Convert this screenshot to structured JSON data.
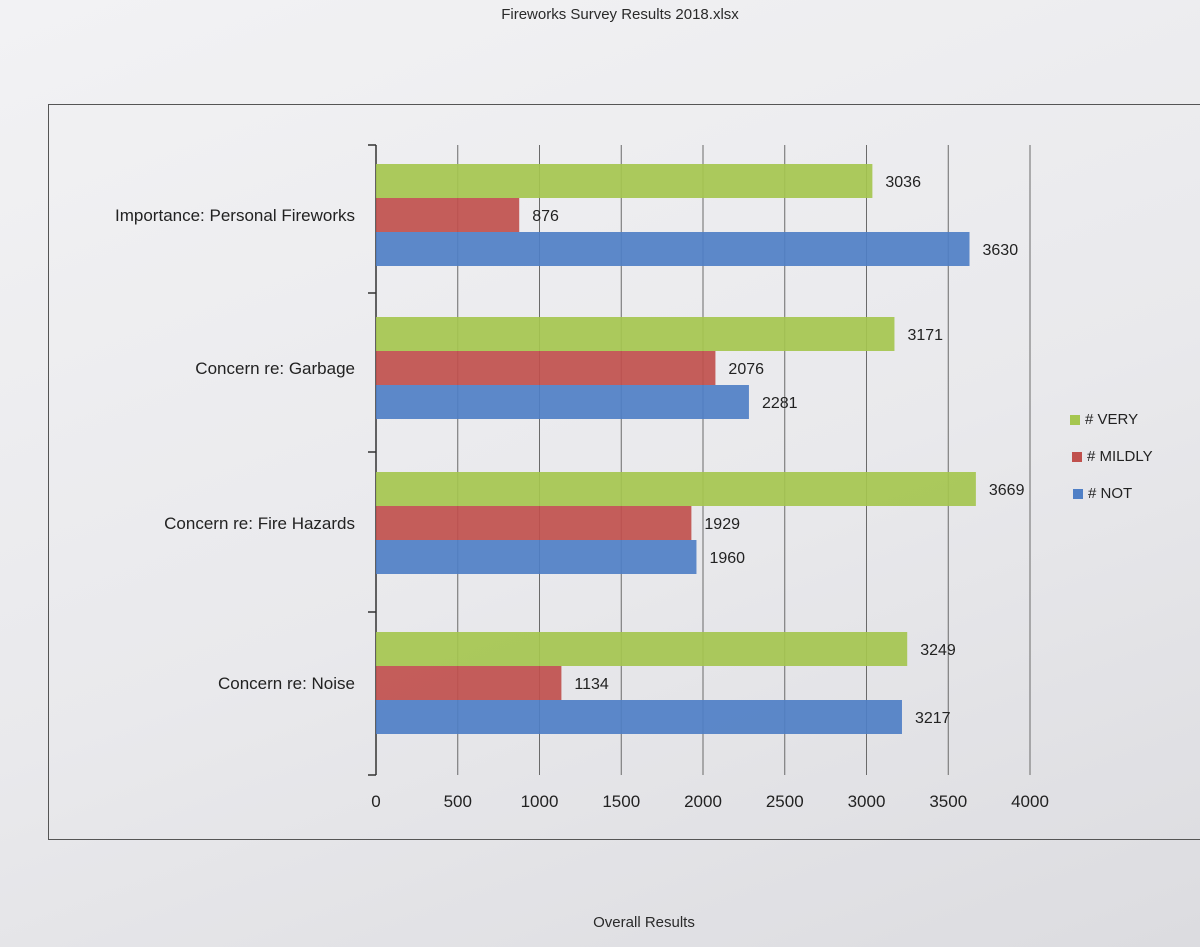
{
  "file_title": "Fireworks Survey Results 2018.xlsx",
  "footer_title": "Overall Results",
  "chart_data": {
    "type": "bar",
    "orientation": "horizontal",
    "title": "Overall Results",
    "categories": [
      "Importance: Personal Fireworks",
      "Concern re: Garbage",
      "Concern re: Fire Hazards",
      "Concern re: Noise"
    ],
    "series": [
      {
        "name": "# VERY",
        "color": "#a5c64f",
        "values": [
          3036,
          3171,
          3669,
          3249
        ]
      },
      {
        "name": "# MILDLY",
        "color": "#c0504d",
        "values": [
          876,
          2076,
          1929,
          1134
        ]
      },
      {
        "name": "# NOT",
        "color": "#4f7fc6",
        "values": [
          3630,
          2281,
          1960,
          3217
        ]
      }
    ],
    "xlim": [
      0,
      4000
    ],
    "x_ticks": [
      "0",
      "500",
      "1000",
      "1500",
      "2000",
      "2500",
      "3000",
      "3500",
      "4000"
    ],
    "grid": true,
    "legend_position": "right"
  }
}
